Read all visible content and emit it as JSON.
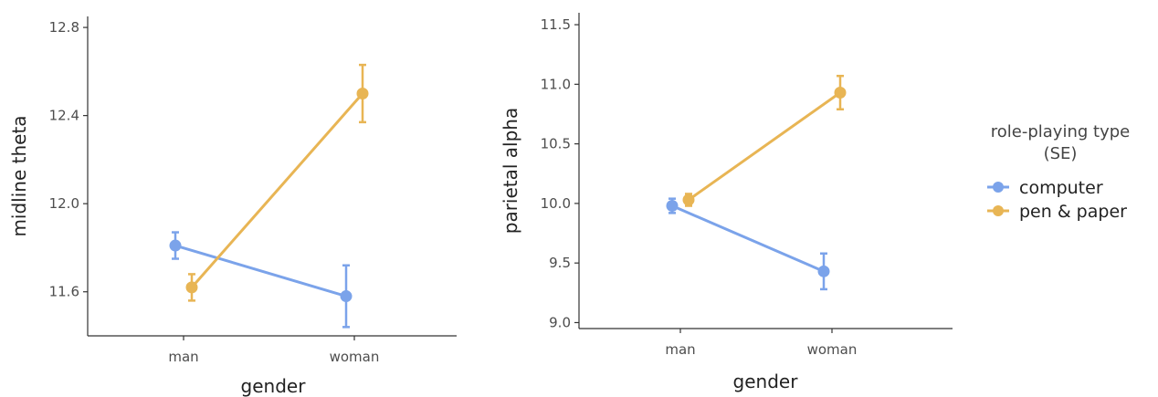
{
  "chart_data": [
    {
      "type": "line",
      "xlabel": "gender",
      "ylabel": "midline theta",
      "categories": [
        "man",
        "woman"
      ],
      "ylim": [
        11.4,
        12.85
      ],
      "yticks": [
        11.6,
        12.0,
        12.4,
        12.8
      ],
      "ytick_labels": [
        "11.6",
        "12.0",
        "12.4",
        "12.8"
      ],
      "grid": false,
      "series": [
        {
          "name": "computer",
          "color": "#7ba3ea",
          "values": [
            11.81,
            11.58
          ],
          "se": [
            0.06,
            0.14
          ]
        },
        {
          "name": "pen & paper",
          "color": "#e8b554",
          "values": [
            11.62,
            12.5
          ],
          "se": [
            0.06,
            0.13
          ]
        }
      ]
    },
    {
      "type": "line",
      "xlabel": "gender",
      "ylabel": "parietal alpha",
      "categories": [
        "man",
        "woman"
      ],
      "ylim": [
        8.95,
        11.6
      ],
      "yticks": [
        9.0,
        9.5,
        10.0,
        10.5,
        11.0,
        11.5
      ],
      "ytick_labels": [
        "9.0",
        "9.5",
        "10.0",
        "10.5",
        "11.0",
        "11.5"
      ],
      "grid": false,
      "series": [
        {
          "name": "computer",
          "color": "#7ba3ea",
          "values": [
            9.98,
            9.43
          ],
          "se": [
            0.06,
            0.15
          ]
        },
        {
          "name": "pen & paper",
          "color": "#e8b554",
          "values": [
            10.03,
            10.93
          ],
          "se": [
            0.05,
            0.14
          ]
        }
      ]
    }
  ],
  "legend": {
    "title_line1": "role-playing type",
    "title_line2": "(SE)",
    "placement": "right",
    "items": [
      {
        "label": "computer",
        "color": "#7ba3ea"
      },
      {
        "label": "pen & paper",
        "color": "#e8b554"
      }
    ]
  }
}
